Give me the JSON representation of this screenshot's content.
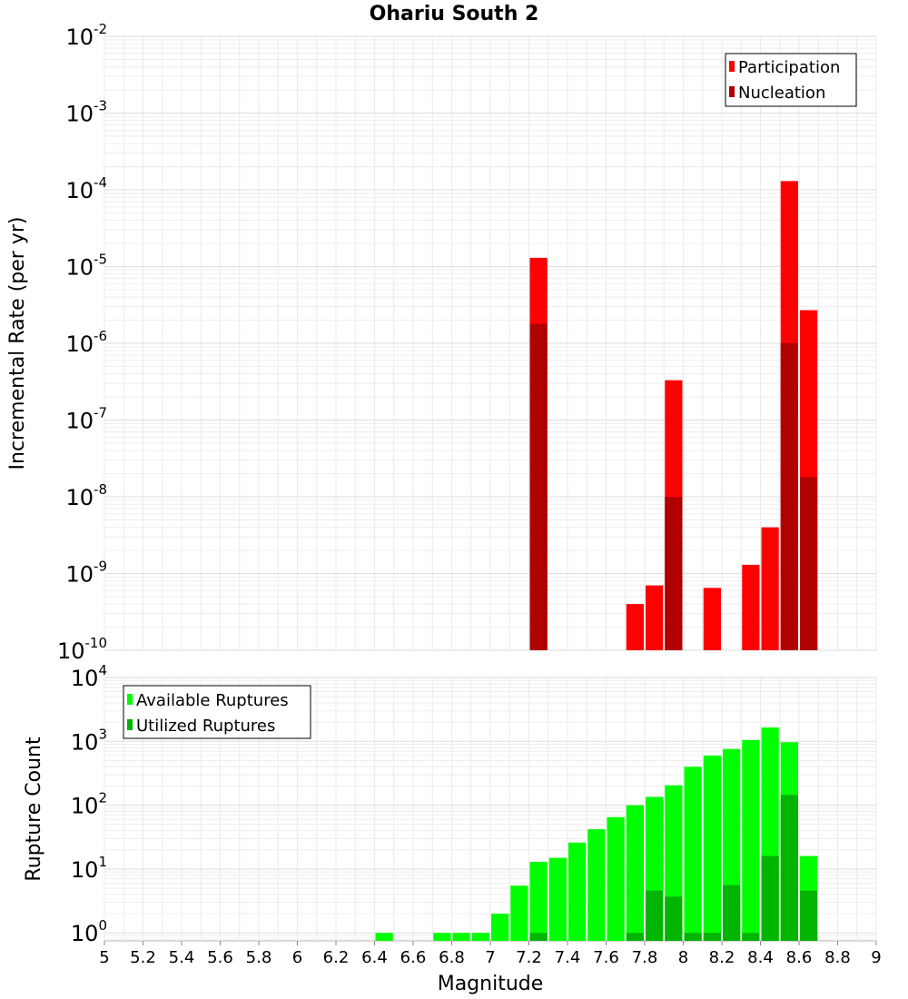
{
  "chart_data": [
    {
      "type": "bar",
      "title": "Ohariu South 2",
      "xlabel": "",
      "ylabel": "Incremental Rate (per yr)",
      "yscale": "log",
      "ylim": [
        1e-10,
        0.01
      ],
      "xlim": [
        5,
        9
      ],
      "bar_width": 0.1,
      "ytick_bases": [
        "10",
        "10",
        "10",
        "10",
        "10",
        "10",
        "10",
        "10",
        "10"
      ],
      "ytick_exponents": [
        "-10",
        "-9",
        "-8",
        "-7",
        "-6",
        "-5",
        "-4",
        "-3",
        "-2"
      ],
      "legend_position": "top-right",
      "series": [
        {
          "name": "Participation",
          "color": "#ff0000",
          "x": [
            7.25,
            7.75,
            7.85,
            7.95,
            8.15,
            8.35,
            8.45,
            8.55,
            8.65
          ],
          "values": [
            1.3e-05,
            4e-10,
            7e-10,
            3.3e-07,
            6.5e-10,
            1.3e-09,
            4e-09,
            0.00013,
            2.7e-06
          ]
        },
        {
          "name": "Nucleation",
          "color": "#b00000",
          "x": [
            7.25,
            7.95,
            8.55,
            8.65
          ],
          "values": [
            1.8e-06,
            1e-08,
            1e-06,
            1.8e-08
          ]
        }
      ]
    },
    {
      "type": "bar",
      "xlabel": "Magnitude",
      "ylabel": "Rupture Count",
      "yscale": "log",
      "ylim": [
        0.75,
        10000
      ],
      "xlim": [
        5,
        9
      ],
      "bar_width": 0.1,
      "ytick_values": [
        1,
        10,
        100,
        1000,
        10000
      ],
      "ytick_bases": [
        "10",
        "10",
        "10",
        "10",
        "10"
      ],
      "ytick_exponents": [
        "0",
        "1",
        "2",
        "3",
        "4"
      ],
      "xtick_values": [
        5,
        5.2,
        5.4,
        5.6,
        5.8,
        6,
        6.2,
        6.4,
        6.6,
        6.8,
        7,
        7.2,
        7.4,
        7.6,
        7.8,
        8,
        8.2,
        8.4,
        8.6,
        8.8,
        9
      ],
      "xtick_labels": [
        "5",
        "5.2",
        "5.4",
        "5.6",
        "5.8",
        "6",
        "6.2",
        "6.4",
        "6.6",
        "6.8",
        "7",
        "7.2",
        "7.4",
        "7.6",
        "7.8",
        "8",
        "8.2",
        "8.4",
        "8.6",
        "8.8",
        "9"
      ],
      "legend_position": "top-left",
      "series": [
        {
          "name": "Available Ruptures",
          "color": "#00ff00",
          "x": [
            6.45,
            6.75,
            6.85,
            6.95,
            7.05,
            7.15,
            7.25,
            7.35,
            7.45,
            7.55,
            7.65,
            7.75,
            7.85,
            7.95,
            8.05,
            8.15,
            8.25,
            8.35,
            8.45,
            8.55,
            8.65
          ],
          "values": [
            1,
            1,
            1,
            1,
            2,
            5.5,
            13,
            15,
            26,
            42,
            65,
            100,
            135,
            205,
            400,
            600,
            760,
            1050,
            1650,
            970,
            16
          ]
        },
        {
          "name": "Utilized Ruptures",
          "color": "#00b400",
          "x": [
            7.25,
            7.75,
            7.85,
            7.95,
            8.05,
            8.15,
            8.25,
            8.35,
            8.45,
            8.55,
            8.65
          ],
          "values": [
            1,
            1,
            4.6,
            3.7,
            1,
            1,
            5.6,
            1,
            16,
            145,
            4.6
          ]
        }
      ]
    }
  ]
}
